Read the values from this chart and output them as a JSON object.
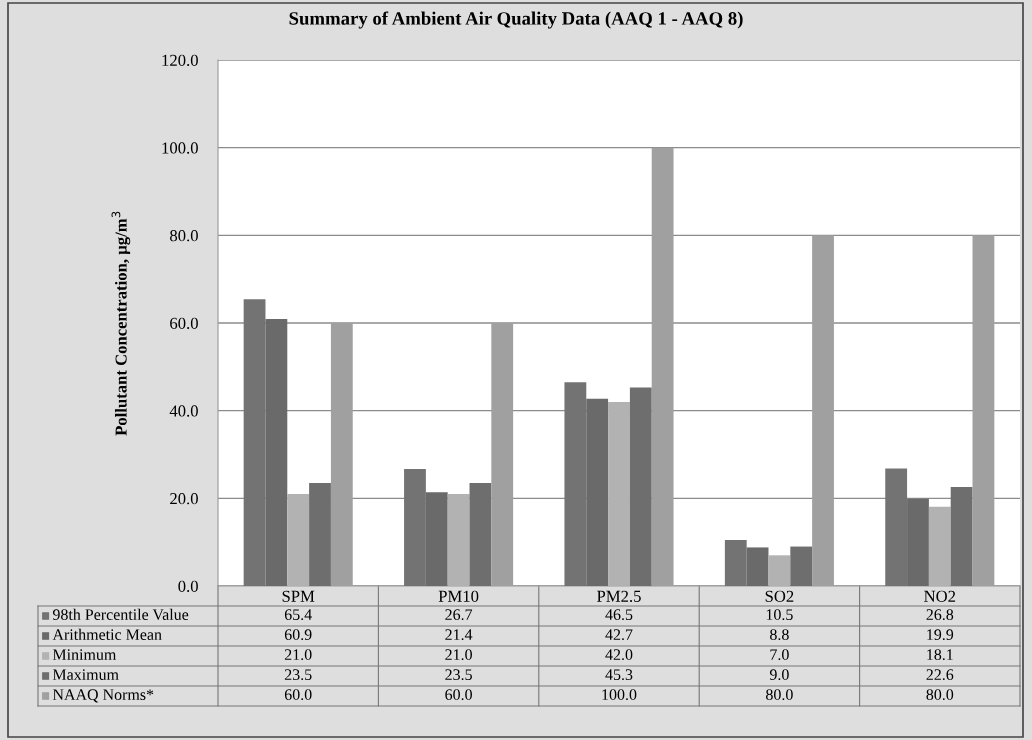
{
  "chart_data": {
    "type": "bar",
    "title": "Summary of Ambient Air Quality Data (AAQ 1 - AAQ 8)",
    "ylabel": "Pollutant Concentration, µg/m$^{3}$",
    "categories": [
      "SPM",
      "PM10",
      "PM2.5",
      "SO2",
      "NO2"
    ],
    "series": [
      {
        "name": "98th Percentile Value",
        "color": "#737373",
        "values": [
          65.4,
          26.7,
          46.5,
          10.5,
          26.8
        ],
        "value_labels": [
          "65.4",
          "26.7",
          "46.5",
          "10.5",
          "26.8"
        ]
      },
      {
        "name": "Arithmetic Mean",
        "color": "#6a6a6a",
        "values": [
          60.9,
          21.4,
          42.7,
          8.8,
          19.9
        ],
        "value_labels": [
          "60.9",
          "21.4",
          "42.7",
          "8.8",
          "19.9"
        ]
      },
      {
        "name": "Minimum",
        "color": "#b2b2b2",
        "values": [
          21.0,
          21.0,
          42.0,
          7.0,
          18.1
        ],
        "value_labels": [
          "21.0",
          "21.0",
          "42.0",
          "7.0",
          "18.1"
        ]
      },
      {
        "name": "Maximum",
        "color": "#6e6e6e",
        "values": [
          23.5,
          23.5,
          45.3,
          9.0,
          22.6
        ],
        "value_labels": [
          "23.5",
          "23.5",
          "45.3",
          "9.0",
          "22.6"
        ]
      },
      {
        "name": "NAAQ Norms*",
        "color": "#a0a0a0",
        "values": [
          60.0,
          60.0,
          100.0,
          80.0,
          80.0
        ],
        "value_labels": [
          "60.0",
          "60.0",
          "100.0",
          "80.0",
          "80.0"
        ]
      }
    ],
    "ylim": [
      0,
      120
    ],
    "yticks": [
      {
        "value": 0,
        "label": "0.0"
      },
      {
        "value": 20,
        "label": "20.0"
      },
      {
        "value": 40,
        "label": "40.0"
      },
      {
        "value": 60,
        "label": "60.0"
      },
      {
        "value": 80,
        "label": "80.0"
      },
      {
        "value": 100,
        "label": "100.0"
      },
      {
        "value": 120,
        "label": "120.0"
      }
    ],
    "grid": "y",
    "legend": "bottom"
  }
}
